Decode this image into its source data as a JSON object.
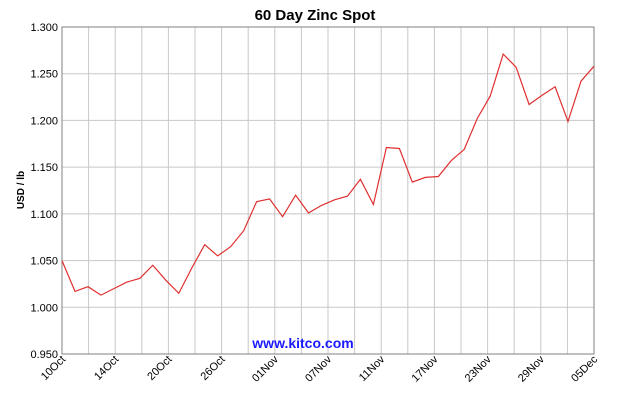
{
  "chart_data": {
    "type": "line",
    "title": "60 Day Zinc Spot",
    "ylabel": "USD / lb",
    "xlabel": "",
    "ylim": [
      0.95,
      1.3
    ],
    "yticks": [
      "0.950",
      "1.000",
      "1.050",
      "1.100",
      "1.150",
      "1.200",
      "1.250",
      "1.300"
    ],
    "xticks": [
      "10Oct",
      "14Oct",
      "20Oct",
      "26Oct",
      "01Nov",
      "07Nov",
      "11Nov",
      "17Nov",
      "23Nov",
      "29Nov",
      "05Dec"
    ],
    "grid": true,
    "line_color": "#e03030",
    "watermark": "www.kitco.com",
    "series": [
      {
        "values": [
          1.05,
          1.017,
          1.022,
          1.013,
          1.02,
          1.027,
          1.031,
          1.045,
          1.029,
          1.015,
          1.042,
          1.067,
          1.055,
          1.065,
          1.082,
          1.113,
          1.116,
          1.097,
          1.12,
          1.101,
          1.109,
          1.115,
          1.119,
          1.137,
          1.11,
          1.171,
          1.17,
          1.134,
          1.139,
          1.14,
          1.157,
          1.169,
          1.202,
          1.226,
          1.271,
          1.257,
          1.217,
          1.227,
          1.236,
          1.199,
          1.242,
          1.258
        ]
      }
    ]
  }
}
